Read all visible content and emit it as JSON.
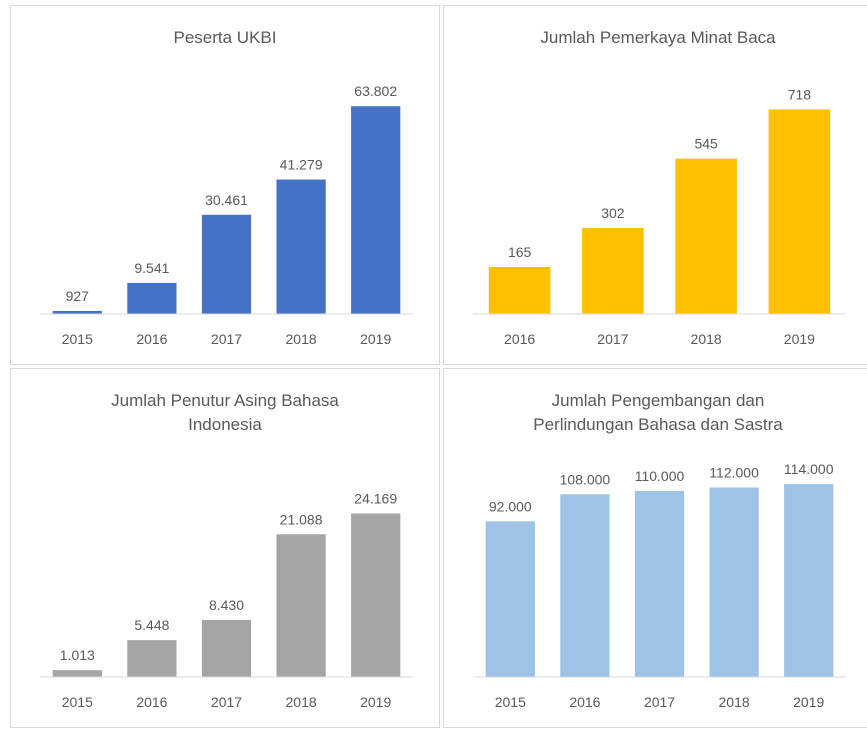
{
  "chart_data": [
    {
      "type": "bar",
      "title": "Peserta UKBI",
      "categories": [
        "2015",
        "2016",
        "2017",
        "2018",
        "2019"
      ],
      "values": [
        927,
        9541,
        30461,
        41279,
        63802
      ],
      "value_labels": [
        "927",
        "9.541",
        "30.461",
        "41.279",
        "63.802"
      ],
      "color": "#4472c4",
      "ylim": [
        0,
        70000
      ]
    },
    {
      "type": "bar",
      "title": "Jumlah Pemerkaya Minat Baca",
      "categories": [
        "2016",
        "2017",
        "2018",
        "2019"
      ],
      "values": [
        165,
        302,
        545,
        718
      ],
      "color": "#ffc000",
      "ylim": [
        0,
        800
      ]
    },
    {
      "type": "bar",
      "title": "Jumlah Penutur Asing Bahasa Indonesia",
      "categories": [
        "2015",
        "2016",
        "2017",
        "2018",
        "2019"
      ],
      "values": [
        1013,
        5448,
        8430,
        21088,
        24169
      ],
      "value_labels": [
        "1.013",
        "5.448",
        "8.430",
        "21.088",
        "24.169"
      ],
      "color": "#a5a5a5",
      "ylim": [
        0,
        30000
      ]
    },
    {
      "type": "bar",
      "title": "Jumlah Pengembangan dan Perlindungan Bahasa dan Sastra",
      "categories": [
        "2015",
        "2016",
        "2017",
        "2018",
        "2019"
      ],
      "values": [
        92000,
        108000,
        110000,
        112000,
        114000
      ],
      "value_labels": [
        "92.000",
        "108.000",
        "110.000",
        "112.000",
        "114.000"
      ],
      "color": "#9dc3e6",
      "ylim": [
        0,
        120000
      ]
    }
  ]
}
